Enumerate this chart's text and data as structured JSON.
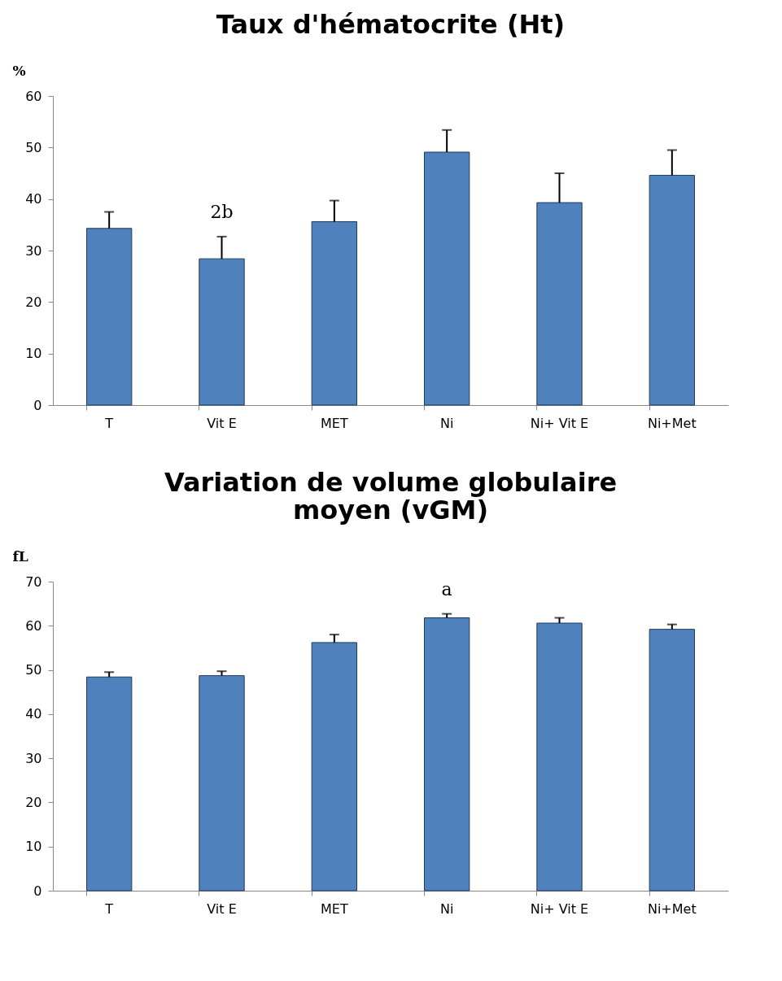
{
  "chart_data": [
    {
      "type": "bar",
      "title": "Taux d'hématocrite (Ht)",
      "ylabel": "%",
      "categories": [
        "T",
        "Vit E",
        "MET",
        "Ni",
        "Ni+ Vit E",
        "Ni+Met"
      ],
      "values": [
        34.3,
        28.4,
        35.6,
        49.1,
        39.3,
        44.6
      ],
      "errors": [
        [
          34.3,
          37.5
        ],
        [
          28.4,
          32.7
        ],
        [
          35.6,
          39.7
        ],
        [
          49.1,
          53.4
        ],
        [
          39.3,
          45.0
        ],
        [
          44.6,
          49.5
        ]
      ],
      "color": "#4f81bd",
      "ylim": [
        0,
        60
      ],
      "yticks": [
        0,
        10,
        20,
        30,
        40,
        50,
        60
      ],
      "grid": false,
      "annotations": [
        {
          "text": "2b",
          "x": "Vit E",
          "y": 28.4
        }
      ]
    },
    {
      "type": "bar",
      "title": "Variation de volume globulaire moyen (vGM)",
      "ylabel": "fL",
      "categories": [
        "T",
        "Vit E",
        "MET",
        "Ni",
        "Ni+ Vit E",
        "Ni+Met"
      ],
      "values": [
        48.4,
        48.7,
        56.2,
        61.8,
        60.6,
        59.2
      ],
      "errors": [
        [
          48.4,
          49.5
        ],
        [
          48.7,
          49.7
        ],
        [
          56.2,
          58.0
        ],
        [
          61.8,
          62.7
        ],
        [
          60.6,
          61.8
        ],
        [
          59.2,
          60.3
        ]
      ],
      "color": "#4f81bd",
      "ylim": [
        0,
        70
      ],
      "yticks": [
        0,
        10,
        20,
        30,
        40,
        50,
        60,
        70
      ],
      "grid": false,
      "annotations": [
        {
          "text": "a",
          "x": "Ni",
          "y": 61.8
        }
      ]
    }
  ]
}
